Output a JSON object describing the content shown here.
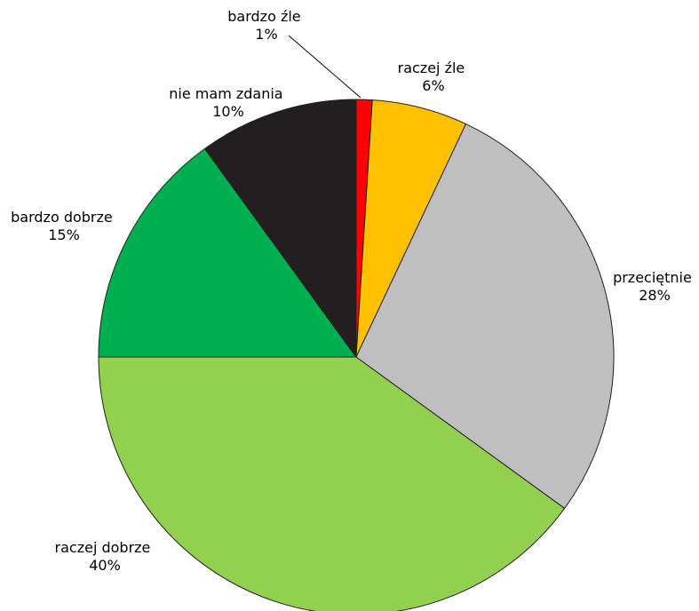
{
  "chart_data": {
    "type": "pie",
    "start_angle_deg": 0,
    "direction": "clockwise",
    "legend": "none",
    "slices": [
      {
        "label": "bardzo źle",
        "value": 1,
        "value_label": "1%",
        "color": "#ff0000"
      },
      {
        "label": "raczej źle",
        "value": 6,
        "value_label": "6%",
        "color": "#ffc000"
      },
      {
        "label": "przeciętnie",
        "value": 28,
        "value_label": "28%",
        "color": "#bfbfbf"
      },
      {
        "label": "raczej dobrze",
        "value": 40,
        "value_label": "40%",
        "color": "#92d050"
      },
      {
        "label": "bardzo dobrze",
        "value": 15,
        "value_label": "15%",
        "color": "#00b050"
      },
      {
        "label": "nie mam zdania",
        "value": 10,
        "value_label": "10%",
        "color": "#231f20"
      }
    ],
    "slice_outline_color": "#231f20"
  }
}
